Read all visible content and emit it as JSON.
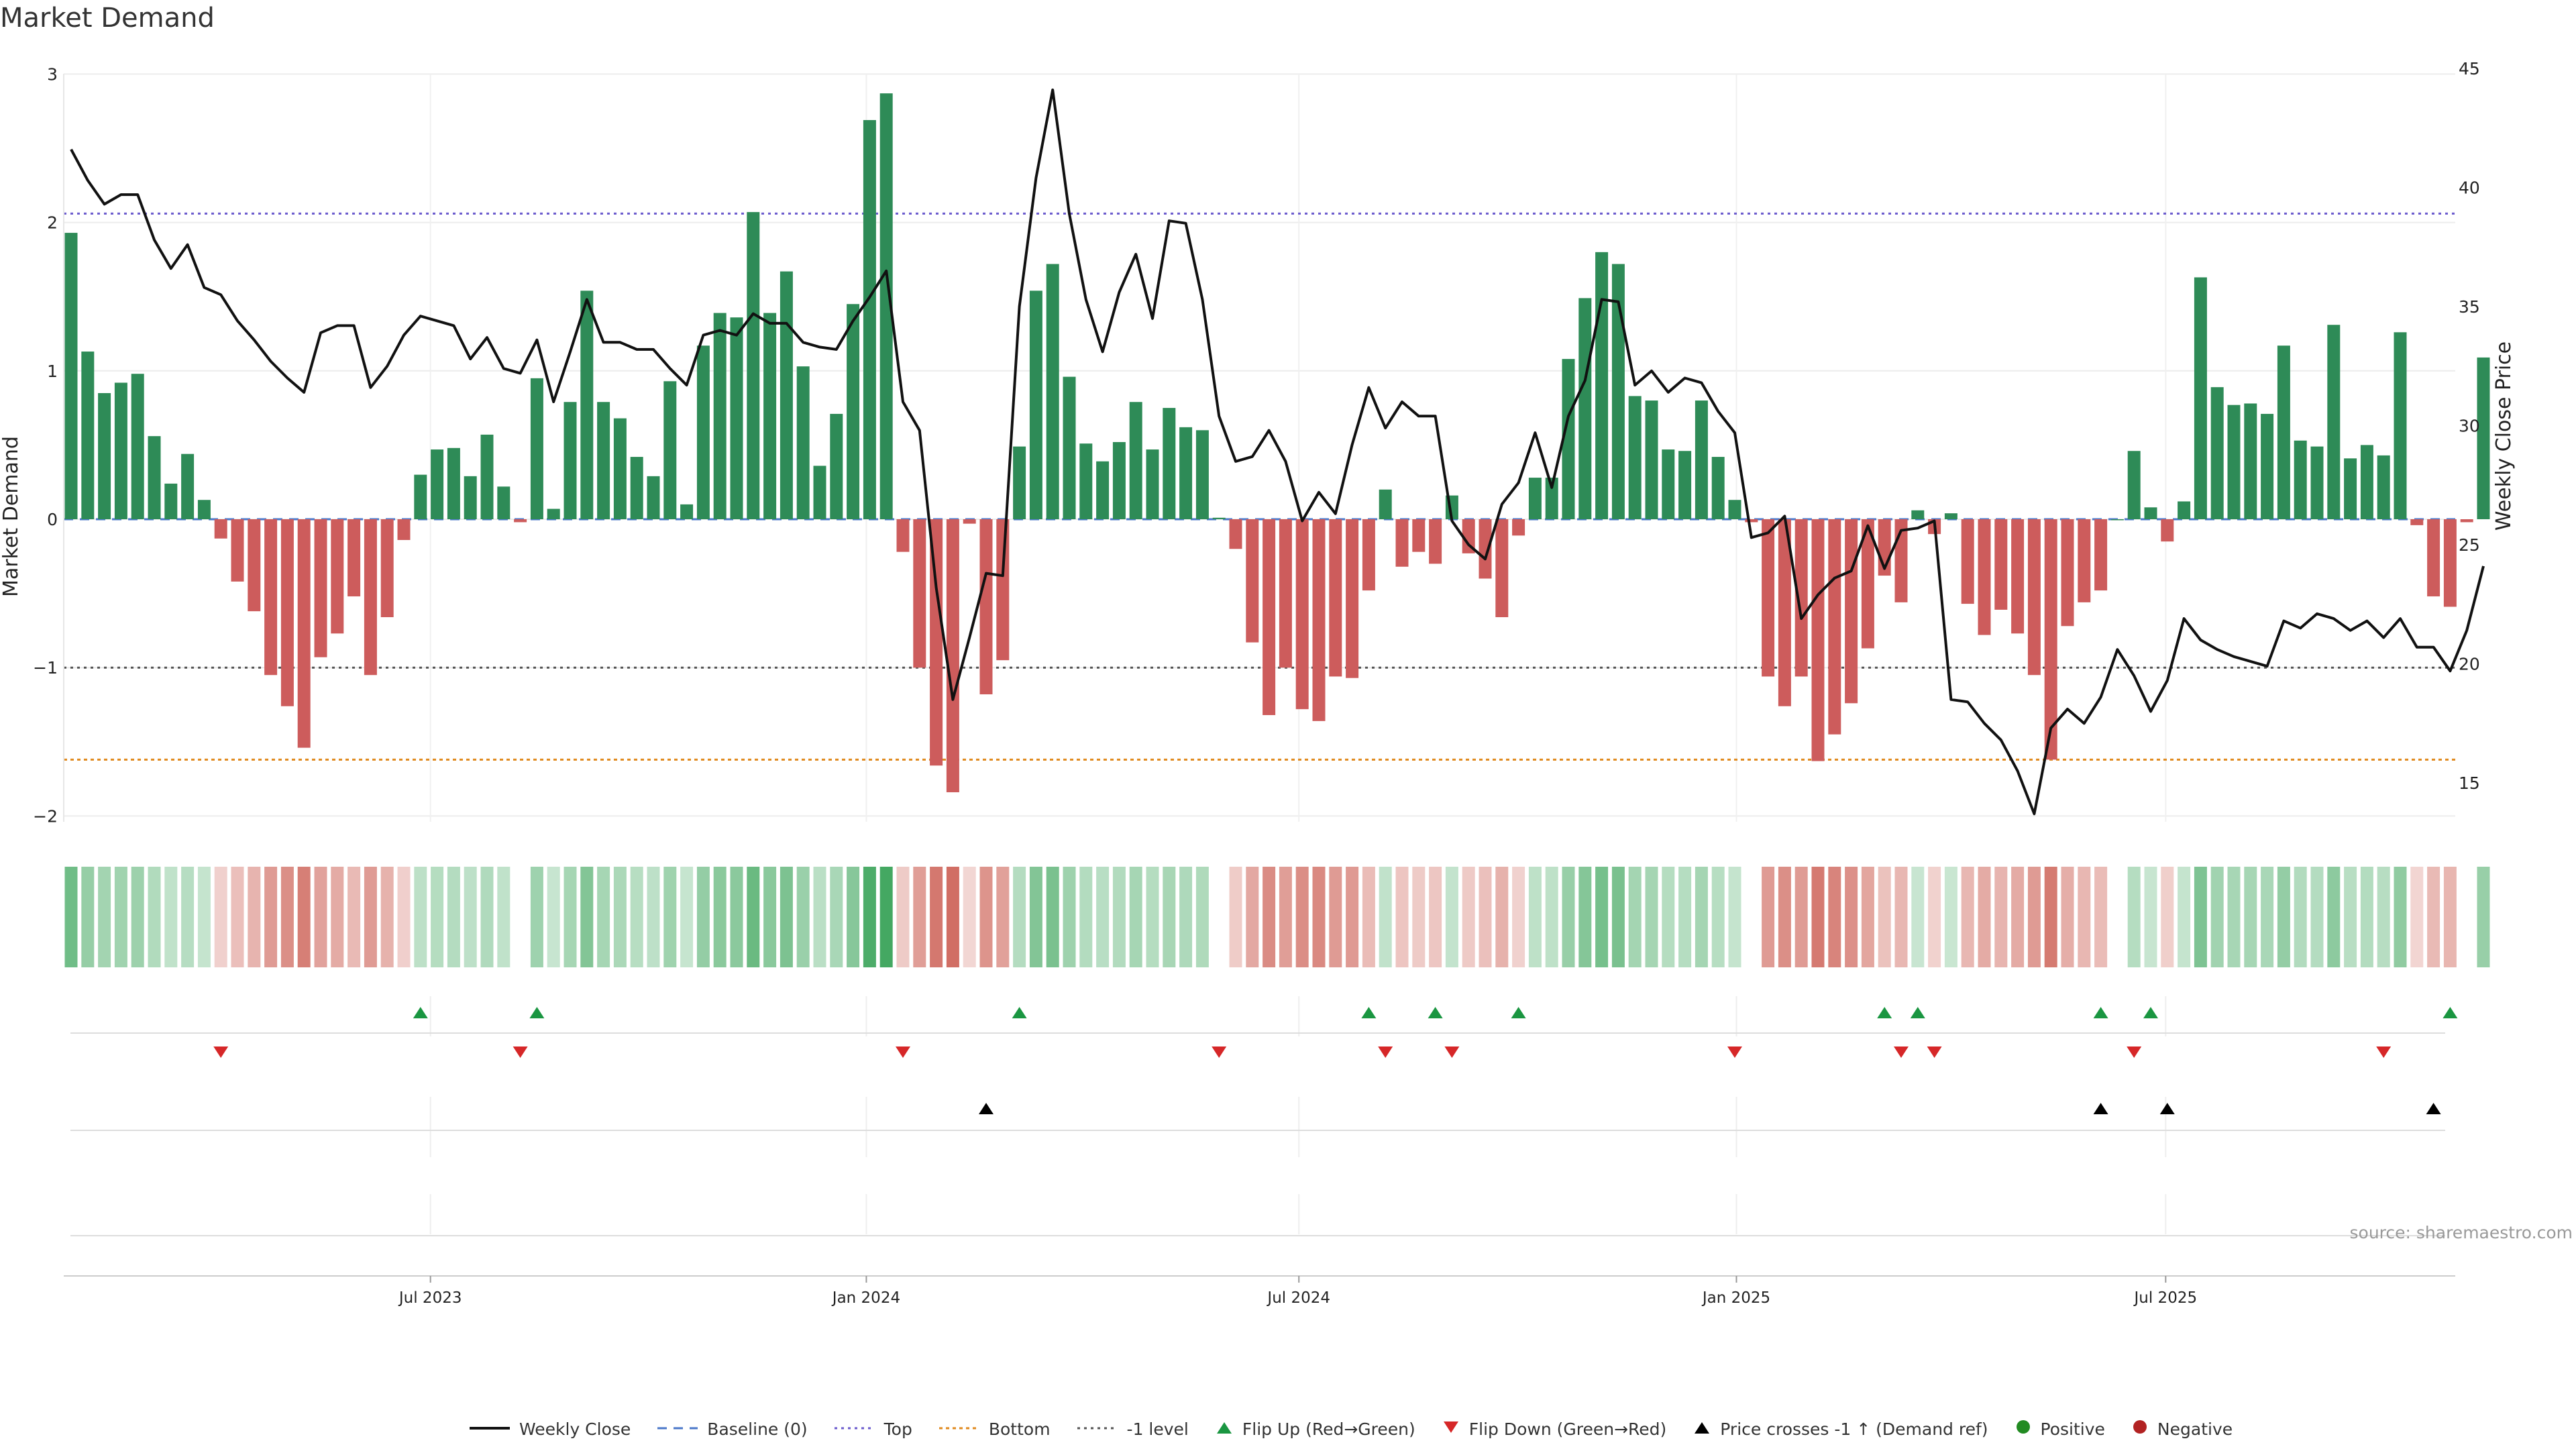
{
  "title": "Market Demand",
  "source": "source: sharemaestro.com",
  "colors": {
    "pos_bar": "#2e8b57",
    "neg_bar": "#cd5c5c",
    "price_line": "#111111",
    "top_line": "#6a5acd",
    "bottom_line": "#e08a1e",
    "minus1_line": "#555555",
    "baseline": "#4a77c9",
    "flip_up": "#1a9641",
    "flip_down": "#d62728",
    "cross": "#000000",
    "positive_dot": "#228b22",
    "negative_dot": "#b22222"
  },
  "legend": [
    {
      "key": "weekly_close",
      "label": "Weekly Close"
    },
    {
      "key": "baseline",
      "label": "Baseline (0)"
    },
    {
      "key": "top",
      "label": "Top"
    },
    {
      "key": "bottom",
      "label": "Bottom"
    },
    {
      "key": "minus1",
      "label": "-1 level"
    },
    {
      "key": "flip_up",
      "label": "Flip Up (Red→Green)"
    },
    {
      "key": "flip_down",
      "label": "Flip Down (Green→Red)"
    },
    {
      "key": "cross",
      "label": "Price crosses -1 ↑ (Demand ref)"
    },
    {
      "key": "positive",
      "label": "Positive"
    },
    {
      "key": "negative",
      "label": "Negative"
    }
  ],
  "chart_data": {
    "type": "bar",
    "title": "Market Demand",
    "ylabel_left": "Market Demand",
    "ylabel_right": "Weekly Close Price",
    "ylim_left": [
      -2.2,
      3.1
    ],
    "ylim_right": [
      11.5,
      46
    ],
    "y_ticks_left": [
      "3",
      "2",
      "1",
      "0",
      "−1",
      "−2"
    ],
    "y_tick_values_left": [
      3,
      2,
      1,
      0,
      -1,
      -2
    ],
    "y_ticks_right": [
      "45",
      "40",
      "35",
      "30",
      "25",
      "20",
      "15"
    ],
    "y_tick_values_right": [
      45,
      40,
      35,
      30,
      25,
      20,
      15
    ],
    "x_ticks": [
      "Jul 2023",
      "Jan 2024",
      "Jul 2024",
      "Jan 2025",
      "Jul 2025"
    ],
    "x_tick_weeks": [
      21.6,
      47.8,
      73.8,
      100.1,
      125.9
    ],
    "reference_levels": {
      "top": 2.06,
      "bottom": -1.62,
      "minus1": -1.0,
      "baseline": 0
    },
    "grid": true,
    "legend_position": "bottom",
    "series": [
      {
        "name": "Market Demand",
        "values": [
          1.93,
          1.13,
          0.85,
          0.92,
          0.98,
          0.56,
          0.24,
          0.44,
          0.13,
          -0.13,
          -0.42,
          -0.62,
          -1.05,
          -1.26,
          -1.54,
          -0.93,
          -0.77,
          -0.52,
          -1.05,
          -0.66,
          -0.14,
          0.3,
          0.47,
          0.48,
          0.29,
          0.57,
          0.22,
          -0.02,
          0.95,
          0.07,
          0.79,
          1.54,
          0.79,
          0.68,
          0.42,
          0.29,
          0.93,
          0.1,
          1.17,
          1.39,
          1.36,
          2.07,
          1.39,
          1.67,
          1.03,
          0.36,
          0.71,
          1.45,
          2.69,
          2.87,
          -0.22,
          -1.0,
          -1.66,
          -1.84,
          -0.03,
          -1.18,
          -0.95,
          0.49,
          1.54,
          1.72,
          0.96,
          0.51,
          0.39,
          0.52,
          0.79,
          0.47,
          0.75,
          0.62,
          0.6,
          0.01,
          -0.2,
          -0.83,
          -1.32,
          -1.0,
          -1.28,
          -1.36,
          -1.06,
          -1.07,
          -0.48,
          0.2,
          -0.32,
          -0.22,
          -0.3,
          0.16,
          -0.23,
          -0.4,
          -0.66,
          -0.11,
          0.28,
          0.28,
          1.08,
          1.49,
          1.8,
          1.72,
          0.83,
          0.8,
          0.47,
          0.46,
          0.8,
          0.42,
          0.13,
          -0.02,
          -1.06,
          -1.26,
          -1.06,
          -1.63,
          -1.45,
          -1.24,
          -0.87,
          -0.38,
          -0.56,
          0.06,
          -0.1,
          0.04,
          -0.57,
          -0.78,
          -0.61,
          -0.77,
          -1.05,
          -1.62,
          -0.72,
          -0.56,
          -0.48,
          0.0,
          0.46,
          0.08,
          -0.15,
          0.12,
          1.63,
          0.89,
          0.77,
          0.78,
          0.71,
          1.17,
          0.53,
          0.49,
          1.31,
          0.41,
          0.5,
          0.43,
          1.26,
          -0.04,
          -0.52,
          -0.59,
          -0.02,
          1.09
        ]
      },
      {
        "name": "Weekly Close",
        "values": [
          41.6,
          40.3,
          39.3,
          39.7,
          39.7,
          37.8,
          36.6,
          37.6,
          35.8,
          35.5,
          34.4,
          33.6,
          32.7,
          32.0,
          31.4,
          33.9,
          34.2,
          34.2,
          31.6,
          32.5,
          33.8,
          34.6,
          34.4,
          34.2,
          32.8,
          33.7,
          32.4,
          32.2,
          33.6,
          31.0,
          33.1,
          35.3,
          33.5,
          33.5,
          33.2,
          33.2,
          32.4,
          31.7,
          33.8,
          34.0,
          33.8,
          34.7,
          34.3,
          34.3,
          33.5,
          33.3,
          33.2,
          34.4,
          35.4,
          36.5,
          31.0,
          29.8,
          23.2,
          18.5,
          21.1,
          23.8,
          23.7,
          35.0,
          40.4,
          44.1,
          38.9,
          35.3,
          33.1,
          35.6,
          37.2,
          34.5,
          38.6,
          38.5,
          35.3,
          30.4,
          28.5,
          28.7,
          29.8,
          28.5,
          26.0,
          27.2,
          26.3,
          29.2,
          31.6,
          29.9,
          31.0,
          30.4,
          30.4,
          26.0,
          25.0,
          24.4,
          26.7,
          27.6,
          29.7,
          27.4,
          30.4,
          31.9,
          35.3,
          35.2,
          31.7,
          32.3,
          31.4,
          32.0,
          31.8,
          30.6,
          29.7,
          25.3,
          25.5,
          26.2,
          21.9,
          22.9,
          23.6,
          23.9,
          25.8,
          24.0,
          25.6,
          25.7,
          26.0,
          18.5,
          18.4,
          17.5,
          16.8,
          15.5,
          13.7,
          17.3,
          18.1,
          17.5,
          18.6,
          20.6,
          19.5,
          18.0,
          19.3,
          21.9,
          21.0,
          20.6,
          20.3,
          20.1,
          19.9,
          21.8,
          21.5,
          22.1,
          21.9,
          21.4,
          21.8,
          21.1,
          21.9,
          20.7,
          20.7,
          19.7,
          21.4,
          24.1
        ]
      }
    ],
    "flip_up_weeks": [
      21,
      28,
      57,
      78,
      82,
      87,
      109,
      111,
      122,
      125,
      143
    ],
    "flip_down_weeks": [
      9,
      27,
      50,
      69,
      79,
      83,
      100,
      110,
      112,
      124,
      139
    ],
    "price_cross_weeks": [
      55,
      122,
      126,
      142
    ]
  }
}
